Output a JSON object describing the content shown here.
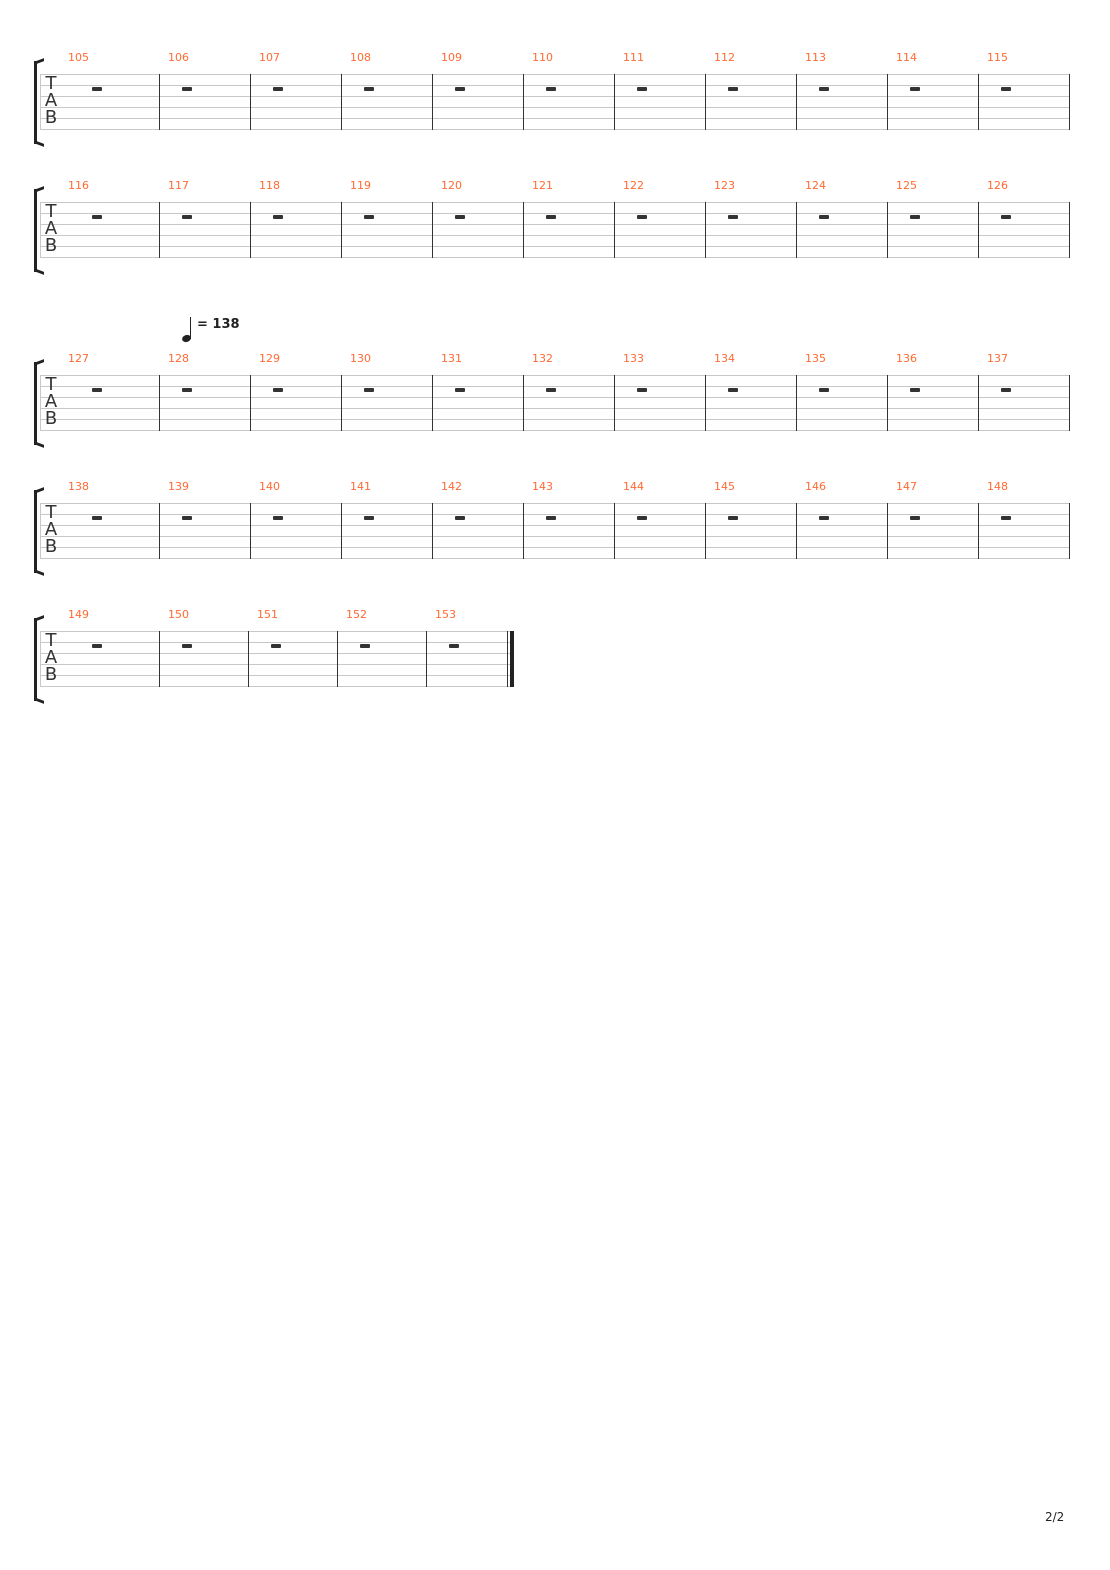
{
  "tab_clef": [
    "T",
    "A",
    "B"
  ],
  "systems": [
    {
      "measures": [
        "105",
        "106",
        "107",
        "108",
        "109",
        "110",
        "111",
        "112",
        "113",
        "114",
        "115"
      ]
    },
    {
      "measures": [
        "116",
        "117",
        "118",
        "119",
        "120",
        "121",
        "122",
        "123",
        "124",
        "125",
        "126"
      ]
    },
    {
      "measures": [
        "127",
        "128",
        "129",
        "130",
        "131",
        "132",
        "133",
        "134",
        "135",
        "136",
        "137"
      ],
      "tempo": {
        "text": "= 138"
      }
    },
    {
      "measures": [
        "138",
        "139",
        "140",
        "141",
        "142",
        "143",
        "144",
        "145",
        "146",
        "147",
        "148"
      ]
    },
    {
      "measures": [
        "149",
        "150",
        "151",
        "152",
        "153"
      ],
      "final": true
    }
  ],
  "measure_content": "whole-rest",
  "colors": {
    "measure_number": "#ff6a33",
    "staff": "#c8c8c8"
  },
  "page_number": "2/2"
}
